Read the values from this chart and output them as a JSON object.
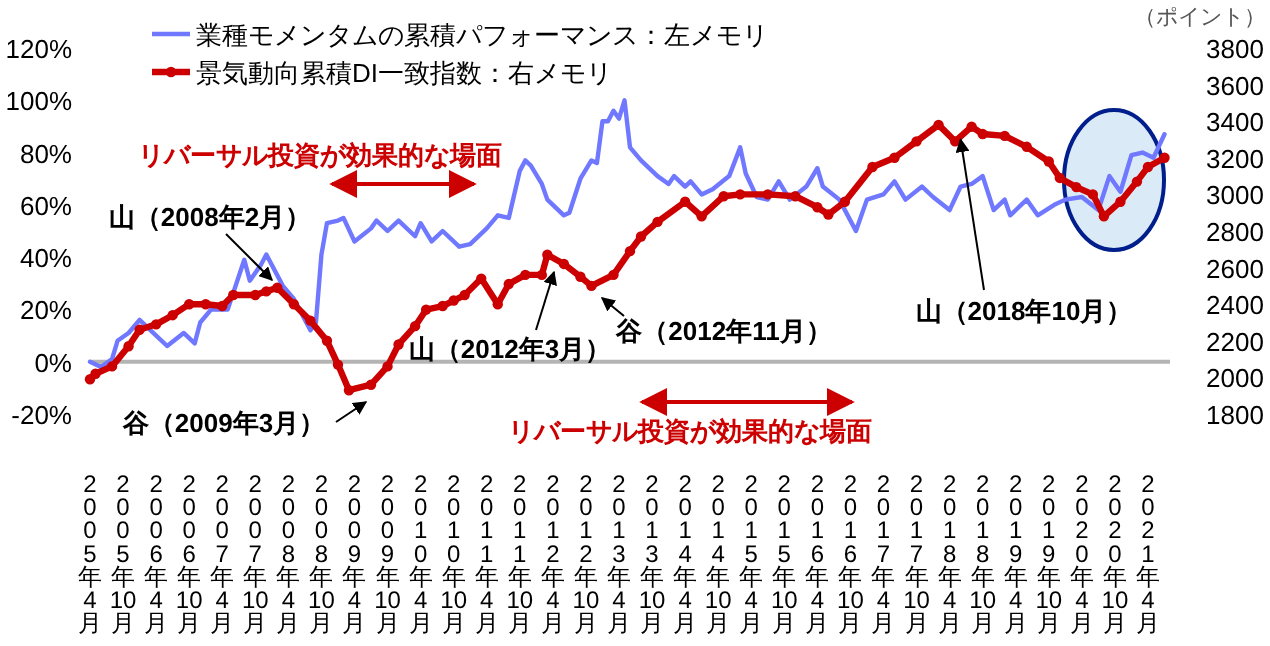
{
  "chart_data": {
    "type": "line",
    "xlim": [
      "2005-04",
      "2021-08"
    ],
    "xticks": [
      {
        "value": "2005-04",
        "label": "2005年4月"
      },
      {
        "value": "2005-10",
        "label": "2005年10月"
      },
      {
        "value": "2006-04",
        "label": "2006年4月"
      },
      {
        "value": "2006-10",
        "label": "2006年10月"
      },
      {
        "value": "2007-04",
        "label": "2007年4月"
      },
      {
        "value": "2007-10",
        "label": "2007年10月"
      },
      {
        "value": "2008-04",
        "label": "2008年4月"
      },
      {
        "value": "2008-10",
        "label": "2008年10月"
      },
      {
        "value": "2009-04",
        "label": "2009年4月"
      },
      {
        "value": "2009-10",
        "label": "2009年10月"
      },
      {
        "value": "2010-04",
        "label": "2010年4月"
      },
      {
        "value": "2010-10",
        "label": "2010年10月"
      },
      {
        "value": "2011-04",
        "label": "2011年4月"
      },
      {
        "value": "2011-10",
        "label": "2011年10月"
      },
      {
        "value": "2012-04",
        "label": "2012年4月"
      },
      {
        "value": "2012-10",
        "label": "2012年10月"
      },
      {
        "value": "2013-04",
        "label": "2013年4月"
      },
      {
        "value": "2013-10",
        "label": "2013年10月"
      },
      {
        "value": "2014-04",
        "label": "2014年4月"
      },
      {
        "value": "2014-10",
        "label": "2014年10月"
      },
      {
        "value": "2015-04",
        "label": "2015年4月"
      },
      {
        "value": "2015-10",
        "label": "2015年10月"
      },
      {
        "value": "2016-04",
        "label": "2016年4月"
      },
      {
        "value": "2016-10",
        "label": "2016年10月"
      },
      {
        "value": "2017-04",
        "label": "2017年4月"
      },
      {
        "value": "2017-10",
        "label": "2017年10月"
      },
      {
        "value": "2018-04",
        "label": "2018年4月"
      },
      {
        "value": "2018-10",
        "label": "2018年10月"
      },
      {
        "value": "2019-04",
        "label": "2019年4月"
      },
      {
        "value": "2019-10",
        "label": "2019年10月"
      },
      {
        "value": "2020-04",
        "label": "2020年4月"
      },
      {
        "value": "2020-10",
        "label": "2020年10月"
      },
      {
        "value": "2021-04",
        "label": "2021年4月"
      }
    ],
    "ylim": [
      -20,
      120
    ],
    "yticks": [
      {
        "value": -20,
        "label": "-20%"
      },
      {
        "value": 0,
        "label": "0%"
      },
      {
        "value": 20,
        "label": "20%"
      },
      {
        "value": 40,
        "label": "40%"
      },
      {
        "value": 60,
        "label": "60%"
      },
      {
        "value": 80,
        "label": "80%"
      },
      {
        "value": 100,
        "label": "100%"
      },
      {
        "value": 120,
        "label": "120%"
      }
    ],
    "y2lim": [
      1800,
      3800
    ],
    "y2ticks": [
      1800,
      2000,
      2200,
      2400,
      2600,
      2800,
      3000,
      3200,
      3400,
      3600,
      3800
    ],
    "y2label": "（ポイント）",
    "legend": "top left",
    "series": [
      {
        "name": "業種モメンタムの累積パフォーマンス：左メモリ",
        "color": "#6f78ff",
        "marker": "none",
        "x": [
          "2005-04",
          "2005-06",
          "2005-08",
          "2005-09",
          "2005-11",
          "2006-01",
          "2006-03",
          "2006-06",
          "2006-09",
          "2006-11",
          "2006-12",
          "2007-02",
          "2007-05",
          "2007-08",
          "2007-09",
          "2007-11",
          "2007-12",
          "2008-03",
          "2008-05",
          "2008-08",
          "2008-09",
          "2008-10",
          "2008-11",
          "2009-01",
          "2009-02",
          "2009-04",
          "2009-07",
          "2009-08",
          "2009-10",
          "2009-12",
          "2010-03",
          "2010-04",
          "2010-06",
          "2010-08",
          "2010-11",
          "2011-01",
          "2011-04",
          "2011-06",
          "2011-08",
          "2011-10",
          "2011-11",
          "2011-12",
          "2012-02",
          "2012-03",
          "2012-06",
          "2012-07",
          "2012-09",
          "2012-11",
          "2012-12",
          "2013-01",
          "2013-02",
          "2013-03",
          "2013-04",
          "2013-05",
          "2013-06",
          "2013-08",
          "2013-11",
          "2014-01",
          "2014-02",
          "2014-04",
          "2014-05",
          "2014-07",
          "2014-09",
          "2014-12",
          "2015-02",
          "2015-03",
          "2015-05",
          "2015-07",
          "2015-09",
          "2015-11",
          "2016-02",
          "2016-04",
          "2016-05",
          "2016-08",
          "2016-11",
          "2017-01",
          "2017-04",
          "2017-06",
          "2017-08",
          "2017-11",
          "2018-01",
          "2018-04",
          "2018-06",
          "2018-08",
          "2018-10",
          "2018-12",
          "2019-02",
          "2019-03",
          "2019-06",
          "2019-08",
          "2019-11",
          "2020-01",
          "2020-04",
          "2020-07",
          "2020-09",
          "2020-11",
          "2021-01",
          "2021-03",
          "2021-05",
          "2021-07"
        ],
        "values": [
          0,
          -2,
          1,
          8,
          11,
          16,
          12,
          6,
          11,
          7,
          15,
          20,
          20,
          39,
          31,
          37,
          41,
          29,
          24,
          12,
          15,
          41,
          53,
          54,
          55,
          46,
          51,
          54,
          50,
          54,
          48,
          53,
          46,
          50,
          44,
          45,
          51,
          56,
          55,
          73,
          77,
          75,
          68,
          62,
          56,
          57,
          70,
          77,
          76,
          92,
          92,
          96,
          93,
          100,
          82,
          77,
          71,
          68,
          71,
          67,
          69,
          64,
          66,
          71,
          82,
          72,
          63,
          62,
          69,
          62,
          67,
          74,
          67,
          62,
          50,
          62,
          64,
          69,
          62,
          67,
          63,
          58,
          67,
          68,
          71,
          58,
          62,
          56,
          62,
          56,
          60,
          62,
          63,
          58,
          71,
          65,
          79,
          80,
          78,
          87
        ]
      },
      {
        "name": "景気動向累積DI一致指数：右メモリ",
        "color": "#cc0000",
        "marker": "circle",
        "axis": "y2",
        "x": [
          "2005-04",
          "2005-05",
          "2005-08",
          "2005-11",
          "2006-01",
          "2006-04",
          "2006-07",
          "2006-10",
          "2007-01",
          "2007-04",
          "2007-06",
          "2007-10",
          "2007-12",
          "2008-02",
          "2008-05",
          "2008-08",
          "2008-11",
          "2009-01",
          "2009-03",
          "2009-07",
          "2009-10",
          "2009-12",
          "2010-03",
          "2010-05",
          "2010-08",
          "2010-10",
          "2010-12",
          "2011-03",
          "2011-06",
          "2011-08",
          "2011-11",
          "2012-02",
          "2012-03",
          "2012-06",
          "2012-09",
          "2012-11",
          "2013-03",
          "2013-06",
          "2013-08",
          "2013-11",
          "2014-04",
          "2014-07",
          "2014-11",
          "2015-02",
          "2015-07",
          "2015-12",
          "2016-04",
          "2016-06",
          "2016-09",
          "2017-02",
          "2017-06",
          "2017-10",
          "2018-02",
          "2018-05",
          "2018-08",
          "2018-10",
          "2019-02",
          "2019-06",
          "2019-10",
          "2019-12",
          "2020-03",
          "2020-06",
          "2020-08",
          "2020-11",
          "2021-02",
          "2021-04",
          "2021-07"
        ],
        "values": [
          1990,
          2020,
          2060,
          2170,
          2260,
          2290,
          2340,
          2400,
          2400,
          2390,
          2450,
          2450,
          2470,
          2490,
          2400,
          2310,
          2200,
          2070,
          1930,
          1960,
          2060,
          2180,
          2280,
          2370,
          2390,
          2420,
          2450,
          2540,
          2400,
          2510,
          2560,
          2560,
          2670,
          2620,
          2550,
          2500,
          2560,
          2690,
          2770,
          2850,
          2960,
          2880,
          2990,
          3000,
          3000,
          2990,
          2930,
          2890,
          2960,
          3150,
          3200,
          3290,
          3380,
          3290,
          3370,
          3330,
          3320,
          3260,
          3180,
          3090,
          3040,
          3000,
          2880,
          2960,
          3070,
          3150,
          3200
        ]
      }
    ],
    "ref_lines": [
      {
        "axis": "y",
        "value": 0,
        "color": "#b4b4b4"
      }
    ],
    "annotations": [
      "山（2008年2月）",
      "谷（2009年3月）",
      "山（2012年3月）",
      "谷（2012年11月）",
      {
        "text": "山（2018年10月）",
        "x": "2018-06",
        "y": 85
      },
      "リバーサル投資が効果的な場面",
      "リバーサル投資が効果的な場面"
    ]
  }
}
